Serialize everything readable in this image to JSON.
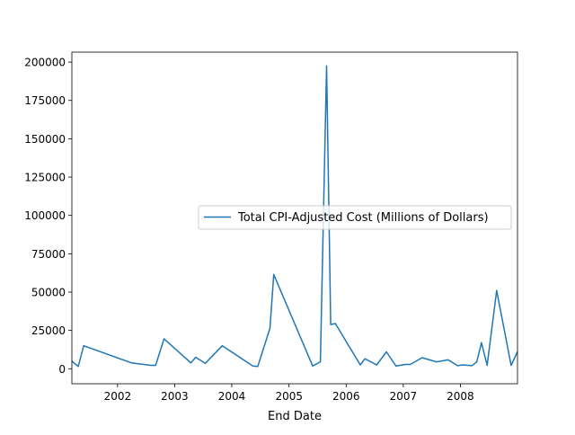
{
  "chart_data": {
    "type": "line",
    "title": "",
    "xlabel": "End Date",
    "ylabel": "",
    "x_axis_type": "date",
    "xlim": [
      "2001-03-15",
      "2008-12-31"
    ],
    "ylim": [
      -9800,
      206500
    ],
    "x_ticks": [
      {
        "date": "2002-01-01",
        "label": "2002"
      },
      {
        "date": "2003-01-01",
        "label": "2003"
      },
      {
        "date": "2004-01-01",
        "label": "2004"
      },
      {
        "date": "2005-01-01",
        "label": "2005"
      },
      {
        "date": "2006-01-01",
        "label": "2006"
      },
      {
        "date": "2007-01-01",
        "label": "2007"
      },
      {
        "date": "2008-01-01",
        "label": "2008"
      }
    ],
    "y_ticks": [
      0,
      25000,
      50000,
      75000,
      100000,
      125000,
      150000,
      175000,
      200000
    ],
    "y_tick_labels": [
      "0",
      "25000",
      "50000",
      "75000",
      "100000",
      "125000",
      "150000",
      "175000",
      "200000"
    ],
    "grid": false,
    "legend_position": "center-right",
    "series": [
      {
        "name": "Total CPI-Adjusted Cost (Millions of Dollars)",
        "color": "#1f77b4",
        "points": [
          {
            "x": "2001-03-15",
            "y": 5000
          },
          {
            "x": "2001-04-25",
            "y": 1500
          },
          {
            "x": "2001-05-30",
            "y": 15000
          },
          {
            "x": "2002-04-01",
            "y": 3800
          },
          {
            "x": "2002-08-01",
            "y": 2200
          },
          {
            "x": "2002-09-01",
            "y": 2200
          },
          {
            "x": "2002-10-25",
            "y": 19500
          },
          {
            "x": "2003-04-15",
            "y": 3800
          },
          {
            "x": "2003-05-15",
            "y": 7500
          },
          {
            "x": "2003-07-15",
            "y": 3500
          },
          {
            "x": "2003-11-01",
            "y": 15000
          },
          {
            "x": "2004-05-15",
            "y": 1800
          },
          {
            "x": "2004-06-15",
            "y": 1500
          },
          {
            "x": "2004-09-01",
            "y": 26500
          },
          {
            "x": "2004-09-25",
            "y": 61500
          },
          {
            "x": "2005-06-01",
            "y": 1800
          },
          {
            "x": "2005-07-20",
            "y": 4500
          },
          {
            "x": "2005-08-29",
            "y": 197500
          },
          {
            "x": "2005-09-24",
            "y": 28800
          },
          {
            "x": "2005-10-24",
            "y": 29500
          },
          {
            "x": "2006-04-01",
            "y": 2500
          },
          {
            "x": "2006-05-01",
            "y": 6500
          },
          {
            "x": "2006-07-15",
            "y": 2500
          },
          {
            "x": "2006-09-15",
            "y": 11000
          },
          {
            "x": "2006-11-15",
            "y": 1800
          },
          {
            "x": "2007-01-15",
            "y": 2800
          },
          {
            "x": "2007-02-15",
            "y": 2800
          },
          {
            "x": "2007-05-01",
            "y": 7200
          },
          {
            "x": "2007-08-01",
            "y": 4500
          },
          {
            "x": "2007-10-15",
            "y": 5800
          },
          {
            "x": "2007-12-15",
            "y": 2000
          },
          {
            "x": "2008-01-15",
            "y": 2500
          },
          {
            "x": "2008-03-15",
            "y": 2000
          },
          {
            "x": "2008-04-15",
            "y": 4500
          },
          {
            "x": "2008-05-15",
            "y": 17000
          },
          {
            "x": "2008-06-20",
            "y": 2200
          },
          {
            "x": "2008-08-20",
            "y": 51000
          },
          {
            "x": "2008-11-20",
            "y": 2200
          },
          {
            "x": "2008-12-31",
            "y": 11000
          }
        ]
      }
    ]
  }
}
